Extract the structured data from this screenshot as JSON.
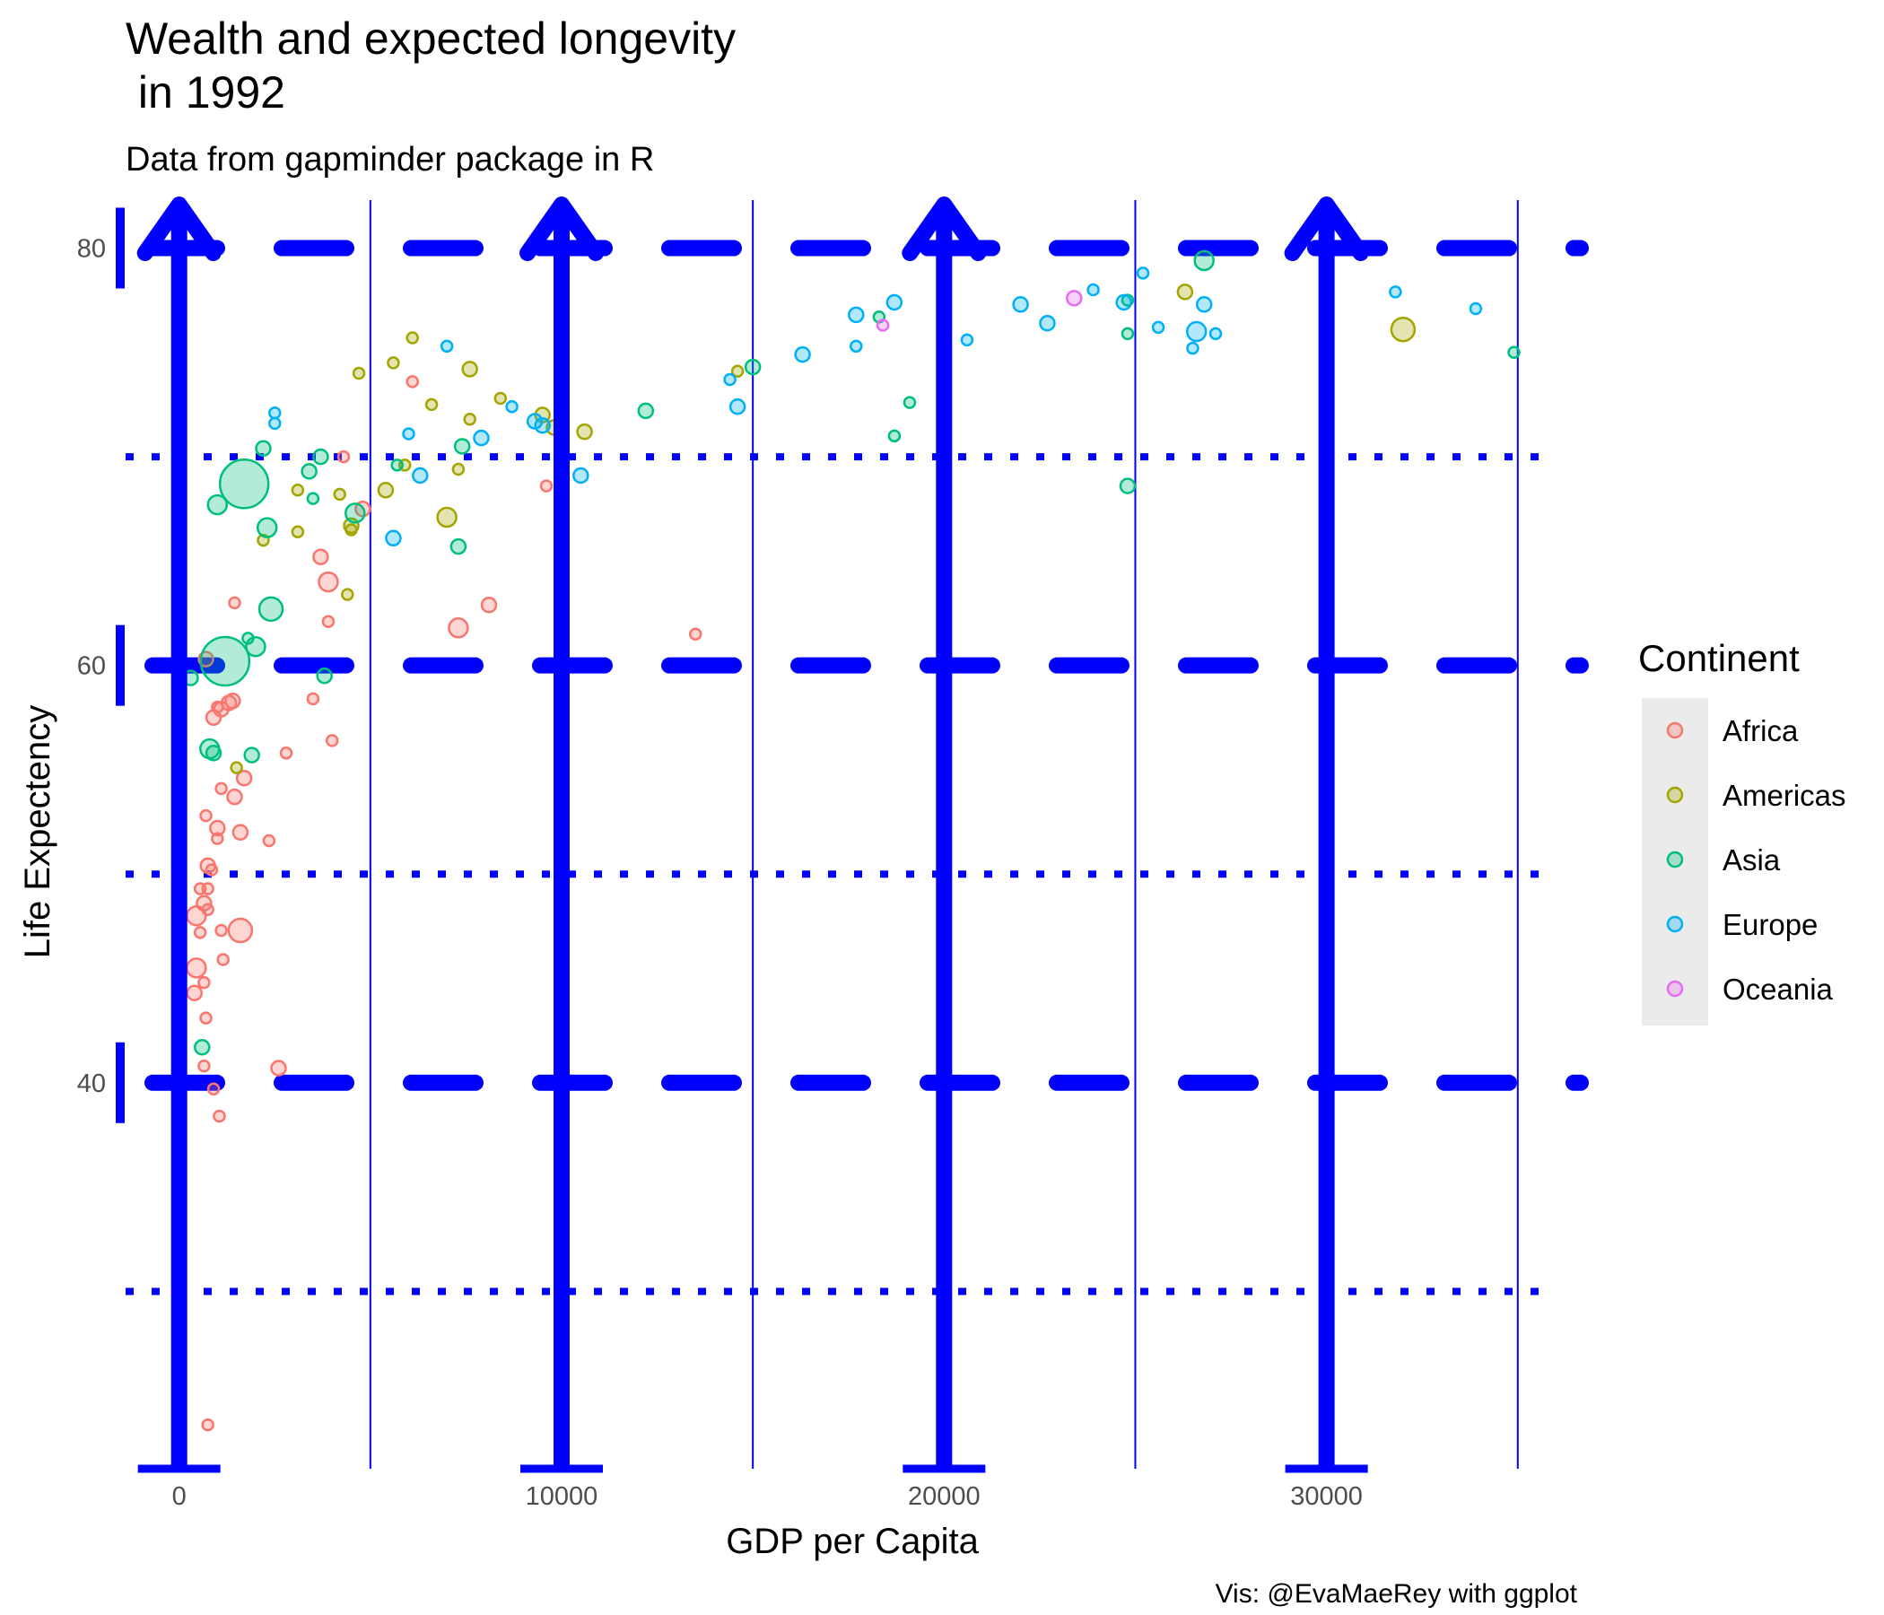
{
  "chart_data": {
    "type": "scatter",
    "title_line1": "Wealth and expected longevity",
    "title_line2": " in 1992",
    "subtitle": "Data from gapminder package in R",
    "xlabel": "GDP per Capita",
    "ylabel": "Life Expectency",
    "caption": "Vis: @EvaMaeRey with ggplot",
    "xlim": [
      -1400,
      36600
    ],
    "ylim": [
      21.5,
      82
    ],
    "x_ticks": [
      0,
      10000,
      20000,
      30000
    ],
    "x_tick_labels": [
      "0",
      "10000",
      "20000",
      "30000"
    ],
    "y_ticks": [
      40,
      60,
      80
    ],
    "y_tick_labels": [
      "40",
      "60",
      "80"
    ],
    "x_minor_ticks": [
      5000,
      15000,
      25000,
      35000
    ],
    "y_minor_ticks": [
      30,
      50,
      70
    ],
    "grid": true,
    "legend": {
      "title": "Continent",
      "placement": "right",
      "entries": [
        {
          "name": "Africa",
          "color": "#F8766D"
        },
        {
          "name": "Americas",
          "color": "#A3A500"
        },
        {
          "name": "Asia",
          "color": "#00BF7D"
        },
        {
          "name": "Europe",
          "color": "#00B0F6"
        },
        {
          "name": "Oceania",
          "color": "#E76BF3"
        }
      ]
    },
    "colors": {
      "axis_annotation": "#0000FF"
    },
    "series": [
      {
        "name": "Africa",
        "color": "#F8766D",
        "points": [
          {
            "x": 3900,
            "y": 64.0,
            "s": 3
          },
          {
            "x": 7300,
            "y": 61.8,
            "s": 3
          },
          {
            "x": 8100,
            "y": 62.9,
            "s": 2
          },
          {
            "x": 13500,
            "y": 61.5,
            "s": 1
          },
          {
            "x": 9600,
            "y": 68.6,
            "s": 1
          },
          {
            "x": 4300,
            "y": 70.0,
            "s": 1
          },
          {
            "x": 6100,
            "y": 73.6,
            "s": 1
          },
          {
            "x": 3700,
            "y": 65.2,
            "s": 2
          },
          {
            "x": 4800,
            "y": 67.5,
            "s": 2
          },
          {
            "x": 2800,
            "y": 55.8,
            "s": 1
          },
          {
            "x": 3900,
            "y": 62.1,
            "s": 1
          },
          {
            "x": 1450,
            "y": 63.0,
            "s": 1
          },
          {
            "x": 700,
            "y": 60.3,
            "s": 2
          },
          {
            "x": 1300,
            "y": 58.2,
            "s": 2
          },
          {
            "x": 1100,
            "y": 57.9,
            "s": 2
          },
          {
            "x": 900,
            "y": 57.5,
            "s": 2
          },
          {
            "x": 1000,
            "y": 58.0,
            "s": 1
          },
          {
            "x": 1400,
            "y": 58.3,
            "s": 2
          },
          {
            "x": 3500,
            "y": 58.4,
            "s": 1
          },
          {
            "x": 4000,
            "y": 56.4,
            "s": 1
          },
          {
            "x": 1700,
            "y": 54.6,
            "s": 2
          },
          {
            "x": 1100,
            "y": 54.1,
            "s": 1
          },
          {
            "x": 1450,
            "y": 53.7,
            "s": 2
          },
          {
            "x": 700,
            "y": 52.8,
            "s": 1
          },
          {
            "x": 1000,
            "y": 52.2,
            "s": 2
          },
          {
            "x": 1000,
            "y": 51.7,
            "s": 1
          },
          {
            "x": 1600,
            "y": 52.0,
            "s": 2
          },
          {
            "x": 2350,
            "y": 51.6,
            "s": 1
          },
          {
            "x": 750,
            "y": 50.4,
            "s": 2
          },
          {
            "x": 850,
            "y": 50.2,
            "s": 1
          },
          {
            "x": 550,
            "y": 49.3,
            "s": 1
          },
          {
            "x": 750,
            "y": 49.3,
            "s": 1
          },
          {
            "x": 650,
            "y": 48.6,
            "s": 2
          },
          {
            "x": 750,
            "y": 48.3,
            "s": 1
          },
          {
            "x": 450,
            "y": 48.0,
            "s": 3
          },
          {
            "x": 1100,
            "y": 47.3,
            "s": 1
          },
          {
            "x": 1600,
            "y": 47.3,
            "s": 4
          },
          {
            "x": 550,
            "y": 47.2,
            "s": 1
          },
          {
            "x": 1150,
            "y": 45.9,
            "s": 1
          },
          {
            "x": 450,
            "y": 45.5,
            "s": 3
          },
          {
            "x": 650,
            "y": 44.8,
            "s": 1
          },
          {
            "x": 400,
            "y": 44.3,
            "s": 2
          },
          {
            "x": 700,
            "y": 43.1,
            "s": 1
          },
          {
            "x": 650,
            "y": 40.8,
            "s": 1
          },
          {
            "x": 2600,
            "y": 40.7,
            "s": 2
          },
          {
            "x": 900,
            "y": 39.7,
            "s": 1
          },
          {
            "x": 1050,
            "y": 38.4,
            "s": 1
          },
          {
            "x": 750,
            "y": 23.6,
            "s": 1
          }
        ]
      },
      {
        "name": "Americas",
        "color": "#A3A500",
        "points": [
          {
            "x": 6100,
            "y": 75.7,
            "s": 1
          },
          {
            "x": 5600,
            "y": 74.5,
            "s": 1
          },
          {
            "x": 7600,
            "y": 74.2,
            "s": 2
          },
          {
            "x": 4700,
            "y": 74.0,
            "s": 1
          },
          {
            "x": 8400,
            "y": 72.8,
            "s": 1
          },
          {
            "x": 6600,
            "y": 72.5,
            "s": 1
          },
          {
            "x": 7600,
            "y": 71.8,
            "s": 1
          },
          {
            "x": 9500,
            "y": 72.0,
            "s": 2
          },
          {
            "x": 9800,
            "y": 71.4,
            "s": 2
          },
          {
            "x": 10600,
            "y": 71.2,
            "s": 2
          },
          {
            "x": 5900,
            "y": 69.6,
            "s": 1
          },
          {
            "x": 7300,
            "y": 69.4,
            "s": 1
          },
          {
            "x": 5400,
            "y": 68.4,
            "s": 2
          },
          {
            "x": 3100,
            "y": 68.4,
            "s": 1
          },
          {
            "x": 4200,
            "y": 68.2,
            "s": 1
          },
          {
            "x": 7000,
            "y": 67.1,
            "s": 3
          },
          {
            "x": 4500,
            "y": 66.7,
            "s": 2
          },
          {
            "x": 4500,
            "y": 66.5,
            "s": 1
          },
          {
            "x": 3100,
            "y": 66.4,
            "s": 1
          },
          {
            "x": 2200,
            "y": 66.0,
            "s": 1
          },
          {
            "x": 4400,
            "y": 63.4,
            "s": 1
          },
          {
            "x": 1500,
            "y": 55.1,
            "s": 1
          },
          {
            "x": 14600,
            "y": 74.1,
            "s": 1
          },
          {
            "x": 26300,
            "y": 77.9,
            "s": 2
          },
          {
            "x": 32000,
            "y": 76.1,
            "s": 4
          }
        ]
      },
      {
        "name": "Asia",
        "color": "#00BF7D",
        "points": [
          {
            "x": 1700,
            "y": 68.7,
            "s": 6
          },
          {
            "x": 1200,
            "y": 60.2,
            "s": 6
          },
          {
            "x": 2200,
            "y": 70.4,
            "s": 2
          },
          {
            "x": 3700,
            "y": 70.0,
            "s": 2
          },
          {
            "x": 3400,
            "y": 69.3,
            "s": 2
          },
          {
            "x": 3500,
            "y": 68.0,
            "s": 1
          },
          {
            "x": 4600,
            "y": 67.3,
            "s": 3
          },
          {
            "x": 1000,
            "y": 67.7,
            "s": 3
          },
          {
            "x": 2300,
            "y": 66.6,
            "s": 3
          },
          {
            "x": 2400,
            "y": 62.7,
            "s": 4
          },
          {
            "x": 1800,
            "y": 61.3,
            "s": 1
          },
          {
            "x": 2000,
            "y": 60.9,
            "s": 3
          },
          {
            "x": 3800,
            "y": 59.5,
            "s": 2
          },
          {
            "x": 300,
            "y": 59.4,
            "s": 2
          },
          {
            "x": 800,
            "y": 56.0,
            "s": 3
          },
          {
            "x": 900,
            "y": 55.8,
            "s": 2
          },
          {
            "x": 1900,
            "y": 55.7,
            "s": 2
          },
          {
            "x": 600,
            "y": 41.7,
            "s": 2
          },
          {
            "x": 5700,
            "y": 69.6,
            "s": 1
          },
          {
            "x": 7400,
            "y": 70.5,
            "s": 2
          },
          {
            "x": 7300,
            "y": 65.7,
            "s": 2
          },
          {
            "x": 12200,
            "y": 72.2,
            "s": 2
          },
          {
            "x": 15000,
            "y": 74.3,
            "s": 2
          },
          {
            "x": 18300,
            "y": 76.7,
            "s": 1
          },
          {
            "x": 18700,
            "y": 71.0,
            "s": 1
          },
          {
            "x": 19100,
            "y": 72.6,
            "s": 1
          },
          {
            "x": 24800,
            "y": 77.5,
            "s": 1
          },
          {
            "x": 24800,
            "y": 75.9,
            "s": 1
          },
          {
            "x": 24800,
            "y": 68.6,
            "s": 2
          },
          {
            "x": 26800,
            "y": 79.4,
            "s": 3
          },
          {
            "x": 34900,
            "y": 75.0,
            "s": 1
          }
        ]
      },
      {
        "name": "Europe",
        "color": "#00B0F6",
        "points": [
          {
            "x": 2500,
            "y": 72.1,
            "s": 1
          },
          {
            "x": 2500,
            "y": 71.6,
            "s": 1
          },
          {
            "x": 6000,
            "y": 71.1,
            "s": 1
          },
          {
            "x": 6300,
            "y": 69.1,
            "s": 2
          },
          {
            "x": 5600,
            "y": 66.1,
            "s": 2
          },
          {
            "x": 8700,
            "y": 72.4,
            "s": 1
          },
          {
            "x": 7900,
            "y": 70.9,
            "s": 2
          },
          {
            "x": 9300,
            "y": 71.7,
            "s": 2
          },
          {
            "x": 9500,
            "y": 71.5,
            "s": 2
          },
          {
            "x": 10500,
            "y": 69.1,
            "s": 2
          },
          {
            "x": 7000,
            "y": 75.3,
            "s": 1
          },
          {
            "x": 14400,
            "y": 73.7,
            "s": 1
          },
          {
            "x": 14600,
            "y": 72.4,
            "s": 2
          },
          {
            "x": 16300,
            "y": 74.9,
            "s": 2
          },
          {
            "x": 17700,
            "y": 75.3,
            "s": 1
          },
          {
            "x": 17700,
            "y": 76.8,
            "s": 2
          },
          {
            "x": 18700,
            "y": 77.4,
            "s": 2
          },
          {
            "x": 20600,
            "y": 75.6,
            "s": 1
          },
          {
            "x": 22000,
            "y": 77.3,
            "s": 2
          },
          {
            "x": 22700,
            "y": 76.4,
            "s": 2
          },
          {
            "x": 23900,
            "y": 78.0,
            "s": 1
          },
          {
            "x": 24700,
            "y": 77.4,
            "s": 2
          },
          {
            "x": 25200,
            "y": 78.8,
            "s": 1
          },
          {
            "x": 25600,
            "y": 76.2,
            "s": 1
          },
          {
            "x": 26500,
            "y": 75.2,
            "s": 1
          },
          {
            "x": 26600,
            "y": 76.0,
            "s": 3
          },
          {
            "x": 26800,
            "y": 77.3,
            "s": 2
          },
          {
            "x": 27100,
            "y": 75.9,
            "s": 1
          },
          {
            "x": 31800,
            "y": 77.9,
            "s": 1
          },
          {
            "x": 33900,
            "y": 77.1,
            "s": 1
          }
        ]
      },
      {
        "name": "Oceania",
        "color": "#E76BF3",
        "points": [
          {
            "x": 18400,
            "y": 76.3,
            "s": 1
          },
          {
            "x": 23400,
            "y": 77.6,
            "s": 2
          }
        ]
      }
    ]
  }
}
